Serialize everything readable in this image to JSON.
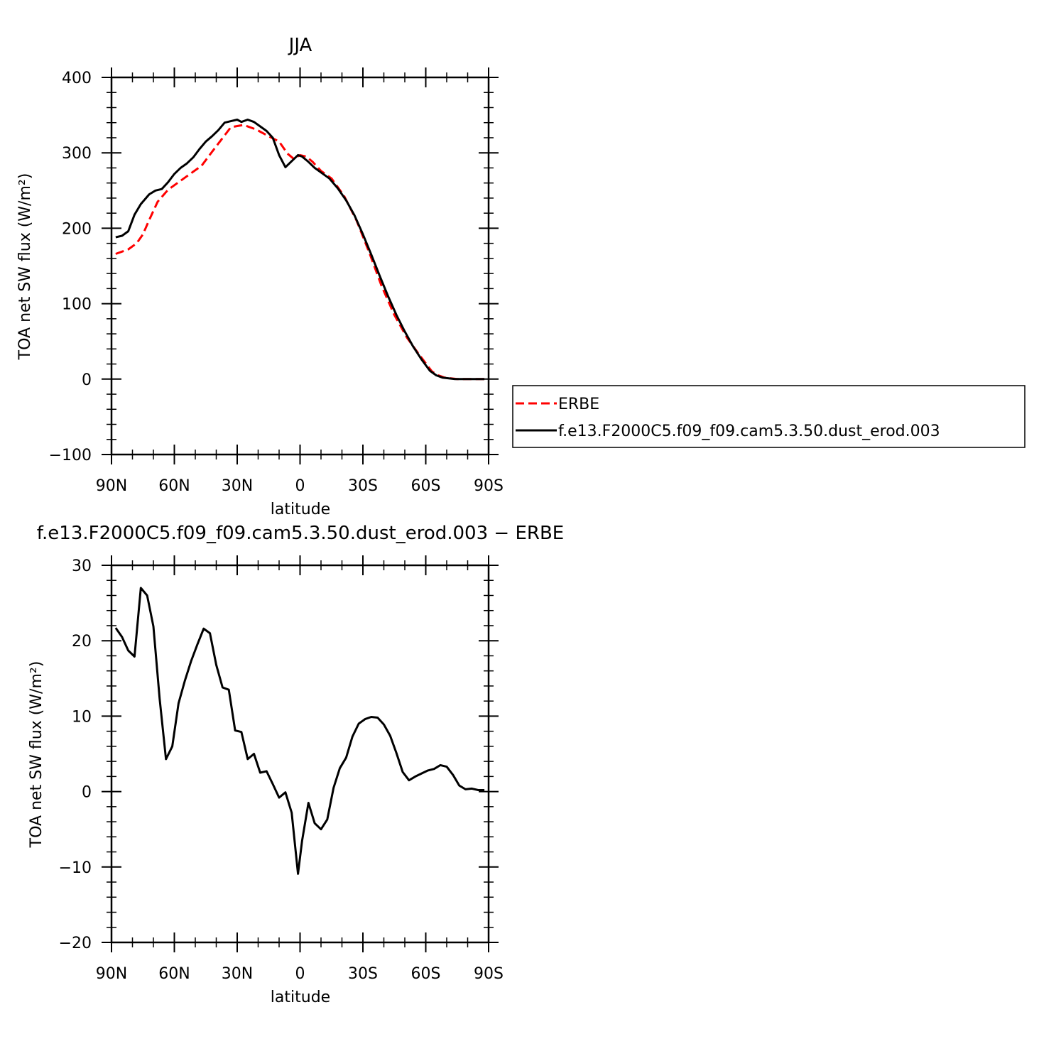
{
  "chart_data": [
    {
      "type": "line",
      "title": "JJA",
      "xlabel": "latitude",
      "ylabel": "TOA net SW flux (W/m²)",
      "ylim": [
        -100,
        400
      ],
      "yticks": [
        -100,
        0,
        100,
        200,
        300,
        400
      ],
      "xlim": [
        90,
        -90
      ],
      "xticks": [
        90,
        60,
        30,
        0,
        -30,
        -60,
        -90
      ],
      "xtick_labels": [
        "90N",
        "60N",
        "30N",
        "0",
        "30S",
        "60S",
        "90S"
      ],
      "legend_position": "right",
      "series": [
        {
          "name": "ERBE",
          "color": "#ff0000",
          "style": "dashed",
          "x": [
            88,
            82,
            78,
            75,
            72,
            68,
            63,
            55,
            47,
            41,
            33,
            27,
            21,
            15,
            10,
            6,
            3,
            0,
            -3,
            -6,
            -10,
            -15,
            -21,
            -27,
            -33,
            -39,
            -45,
            -51,
            -57,
            -63,
            -66,
            -69,
            -72,
            -75,
            -78,
            -81,
            -84,
            -88
          ],
          "y": [
            166,
            172,
            180,
            192,
            211,
            235,
            251,
            267,
            283,
            305,
            334,
            337,
            331,
            322,
            315,
            299,
            292,
            297,
            295,
            288,
            276,
            266,
            243,
            210,
            168,
            123,
            85,
            55,
            32,
            10,
            5,
            2,
            1,
            0,
            0,
            0,
            0,
            0
          ]
        },
        {
          "name": "f.e13.F2000C5.f09_f09.cam5.3.50.dust_erod.003",
          "color": "#000000",
          "style": "solid",
          "x": [
            88,
            85,
            82,
            79,
            76,
            72,
            69,
            66,
            63,
            60,
            57,
            54,
            51,
            48,
            45,
            42,
            39,
            36,
            33,
            30,
            28,
            25,
            22,
            19,
            16,
            13,
            10,
            7,
            4,
            1,
            -1,
            -4,
            -7,
            -10,
            -14,
            -18,
            -22,
            -26,
            -30,
            -34,
            -38,
            -42,
            -46,
            -50,
            -54,
            -58,
            -62,
            -65,
            -68,
            -71,
            -74,
            -77,
            -80,
            -83,
            -86,
            -88
          ],
          "y": [
            188,
            190,
            196,
            218,
            232,
            245,
            250,
            252,
            261,
            272,
            280,
            286,
            294,
            305,
            315,
            322,
            330,
            340,
            342,
            344,
            341,
            344,
            341,
            335,
            329,
            320,
            297,
            281,
            289,
            297,
            295,
            288,
            280,
            274,
            266,
            253,
            237,
            217,
            192,
            165,
            137,
            110,
            85,
            63,
            43,
            26,
            11,
            5,
            2,
            1,
            0,
            0,
            0,
            0,
            0,
            0
          ]
        }
      ]
    },
    {
      "type": "line",
      "title": "f.e13.F2000C5.f09_f09.cam5.3.50.dust_erod.003 − ERBE",
      "xlabel": "latitude",
      "ylabel": "TOA net SW flux (W/m²)",
      "ylim": [
        -20,
        30
      ],
      "yticks": [
        -20,
        -10,
        0,
        10,
        20,
        30
      ],
      "xlim": [
        90,
        -90
      ],
      "xticks": [
        90,
        60,
        30,
        0,
        -30,
        -60,
        -90
      ],
      "xtick_labels": [
        "90N",
        "60N",
        "30N",
        "0",
        "30S",
        "60S",
        "90S"
      ],
      "series": [
        {
          "color": "#000000",
          "style": "solid",
          "x": [
            88,
            85,
            82,
            79,
            76,
            73,
            70,
            67,
            64,
            61,
            58,
            55,
            52,
            49,
            46,
            43,
            40,
            37,
            34,
            31,
            28,
            25,
            22,
            19,
            16,
            13,
            10,
            7,
            4,
            1,
            -1,
            -4,
            -7,
            -10,
            -13,
            -16,
            -19,
            -22,
            -25,
            -28,
            -31,
            -34,
            -37,
            -40,
            -43,
            -46,
            -49,
            -52,
            -55,
            -58,
            -61,
            -64,
            -67,
            -70,
            -73,
            -76,
            -79,
            -82,
            -85,
            -88
          ],
          "y": [
            21.7,
            20.5,
            18.7,
            17.9,
            27.0,
            26.0,
            21.9,
            12.3,
            4.3,
            6.0,
            11.7,
            14.7,
            17.3,
            19.5,
            21.6,
            21.0,
            16.8,
            13.8,
            13.5,
            8.1,
            7.9,
            4.3,
            5.0,
            2.5,
            2.7,
            1.0,
            -0.8,
            -0.1,
            -2.8,
            -10.9,
            -6.5,
            -1.5,
            -4.2,
            -5.0,
            -3.7,
            0.5,
            3.1,
            4.5,
            7.3,
            9.0,
            9.6,
            9.9,
            9.8,
            8.9,
            7.4,
            5.1,
            2.6,
            1.5,
            2.0,
            2.4,
            2.8,
            3.0,
            3.5,
            3.3,
            2.2,
            0.8,
            0.3,
            0.4,
            0.2,
            0.2
          ]
        }
      ]
    }
  ]
}
